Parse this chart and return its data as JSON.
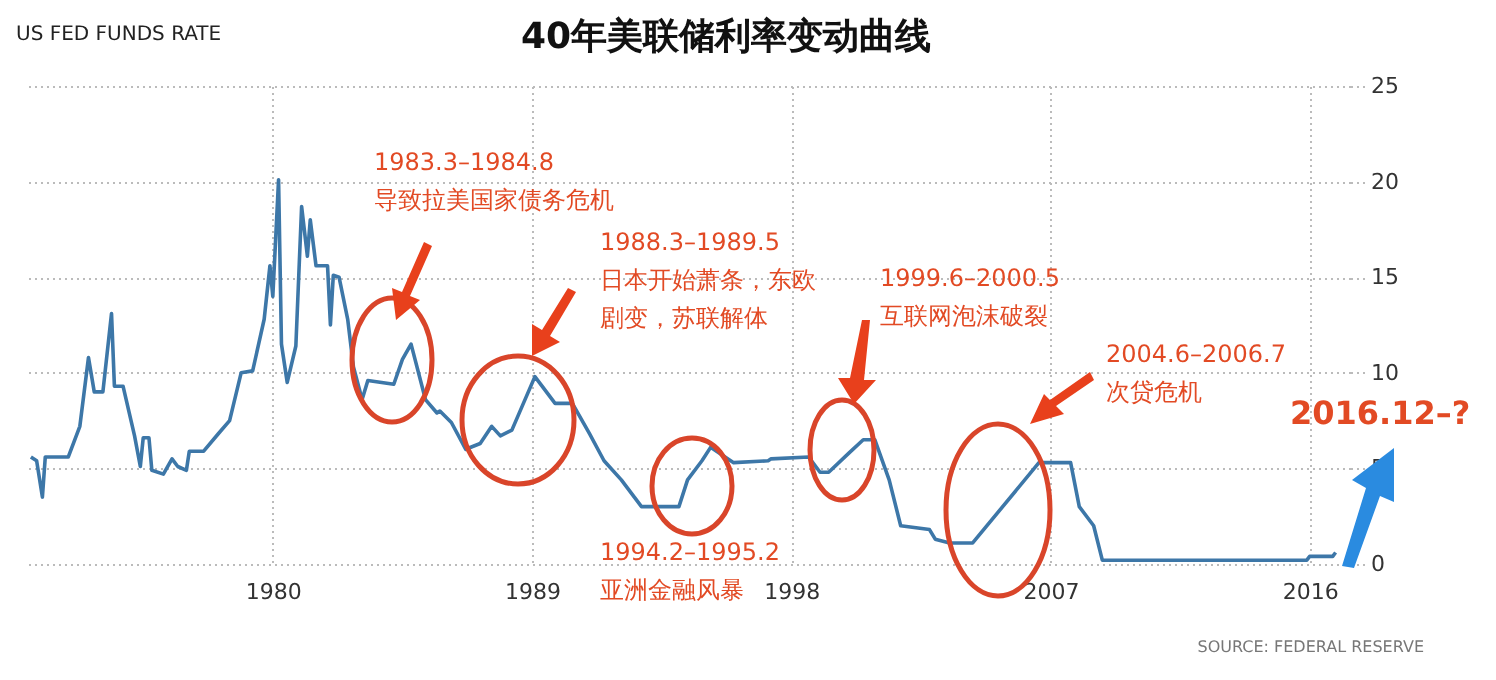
{
  "chart_data": {
    "type": "line",
    "title": "40年美联储利率变动曲线",
    "subtitle": "US FED FUNDS RATE",
    "x": [
      1971.6,
      1971.8,
      1972.0,
      1972.1,
      1972.9,
      1973.3,
      1973.6,
      1973.8,
      1974.1,
      1974.4,
      1974.5,
      1974.8,
      1975.2,
      1975.4,
      1975.5,
      1975.7,
      1975.8,
      1976.2,
      1976.5,
      1976.7,
      1977.0,
      1977.1,
      1977.6,
      1978.1,
      1978.5,
      1978.9,
      1979.3,
      1979.7,
      1979.9,
      1980.0,
      1980.2,
      1980.3,
      1980.5,
      1980.8,
      1981.0,
      1981.2,
      1981.3,
      1981.5,
      1981.9,
      1982.0,
      1982.1,
      1982.3,
      1982.6,
      1982.8,
      1983.1,
      1983.3,
      1984.2,
      1984.5,
      1984.8,
      1985.3,
      1985.7,
      1985.8,
      1986.2,
      1986.7,
      1987.2,
      1987.6,
      1987.9,
      1988.3,
      1989.1,
      1989.8,
      1990.4,
      1991.0,
      1991.5,
      1992.1,
      1992.8,
      1994.1,
      1994.4,
      1994.9,
      1995.2,
      1996.0,
      1997.2,
      1997.3,
      1998.6,
      1999.0,
      1999.3,
      2000.0,
      2000.5,
      2000.9,
      2001.4,
      2001.8,
      2002.8,
      2003.0,
      2003.5,
      2004.3,
      2006.6,
      2007.7,
      2008.0,
      2008.5,
      2008.8,
      2015.9,
      2016.0,
      2016.8,
      2016.9
    ],
    "series": [
      {
        "color": "#3d77a8",
        "values": [
          5.6,
          5.4,
          3.5,
          5.6,
          5.6,
          7.2,
          10.8,
          9.0,
          9.0,
          13.1,
          9.3,
          9.3,
          6.7,
          5.1,
          6.6,
          6.6,
          4.9,
          4.7,
          5.5,
          5.1,
          4.9,
          5.9,
          5.9,
          6.8,
          7.5,
          10.0,
          10.1,
          12.8,
          15.6,
          14.0,
          20.1,
          11.5,
          9.5,
          11.4,
          18.7,
          16.1,
          18.0,
          15.6,
          15.6,
          12.5,
          15.1,
          15.0,
          12.8,
          10.3,
          8.6,
          9.6,
          9.4,
          10.7,
          11.5,
          8.6,
          7.9,
          8.0,
          7.4,
          6.0,
          6.3,
          7.2,
          6.7,
          7.0,
          9.8,
          8.4,
          8.4,
          6.8,
          5.4,
          4.4,
          3.0,
          3.0,
          4.4,
          5.4,
          6.1,
          5.3,
          5.4,
          5.5,
          5.6,
          4.8,
          4.8,
          5.8,
          6.5,
          6.5,
          4.4,
          2.0,
          1.8,
          1.3,
          1.1,
          1.1,
          5.3,
          5.3,
          3.0,
          2.0,
          0.2,
          0.2,
          0.4,
          0.4,
          0.6
        ]
      }
    ],
    "xlim": [
      1971.5,
      2017.4
    ],
    "xticks": [
      1980,
      1989,
      1998,
      2007,
      2016
    ],
    "ylim": [
      0,
      25
    ],
    "yticks": [
      0,
      5,
      10,
      15,
      20,
      25
    ],
    "grid": true,
    "marker": "none",
    "line_style": "solid",
    "annotations": [
      "1983.3–1984.8\n导致拉美国家债务危机",
      "1988.3–1989.5\n日本开始萧条，东欧",
      "剧变，苏联解体",
      "1994.2–1995.2\n亚洲金融风暴",
      "1999.6–2000.5\n互联网泡沫破裂",
      "2004.6–2006.7\n次贷危机",
      "2016.12–?",
      "SOURCE: FEDERAL RESERVE"
    ]
  }
}
